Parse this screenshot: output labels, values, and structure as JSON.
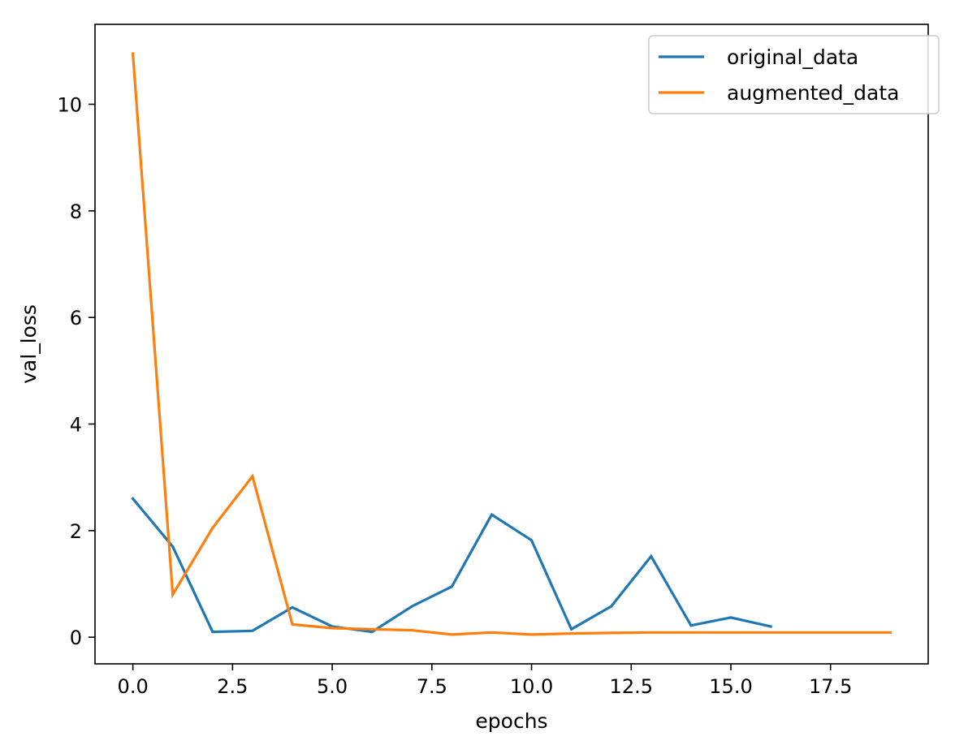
{
  "chart_data": {
    "type": "line",
    "xlabel": "epochs",
    "ylabel": "val_loss",
    "xlim": [
      -0.95,
      19.95
    ],
    "ylim": [
      -0.5,
      11.5
    ],
    "xticks": [
      0.0,
      2.5,
      5.0,
      7.5,
      10.0,
      12.5,
      15.0,
      17.5
    ],
    "xtick_labels": [
      "0.0",
      "2.5",
      "5.0",
      "7.5",
      "10.0",
      "12.5",
      "15.0",
      "17.5"
    ],
    "yticks": [
      0,
      2,
      4,
      6,
      8,
      10
    ],
    "ytick_labels": [
      "0",
      "2",
      "4",
      "6",
      "8",
      "10"
    ],
    "grid": false,
    "legend_position": "top-right",
    "series": [
      {
        "name": "original_data",
        "color": "#1f77b4",
        "x": [
          0,
          1,
          2,
          3,
          4,
          5,
          6,
          7,
          8,
          9,
          10,
          11,
          12,
          13,
          14,
          15,
          16
        ],
        "values": [
          2.6,
          1.7,
          0.1,
          0.12,
          0.56,
          0.2,
          0.1,
          0.58,
          0.95,
          2.3,
          1.82,
          0.15,
          0.58,
          1.52,
          0.22,
          0.37,
          0.2
        ]
      },
      {
        "name": "augmented_data",
        "color": "#ff7f0e",
        "x": [
          0,
          1,
          2,
          3,
          4,
          5,
          6,
          7,
          8,
          9,
          10,
          11,
          12,
          13,
          14,
          15,
          16,
          17,
          18,
          19
        ],
        "values": [
          10.95,
          0.8,
          2.05,
          3.02,
          0.24,
          0.17,
          0.15,
          0.13,
          0.05,
          0.09,
          0.05,
          0.07,
          0.08,
          0.09,
          0.09,
          0.09,
          0.09,
          0.09,
          0.09,
          0.09
        ]
      }
    ]
  }
}
